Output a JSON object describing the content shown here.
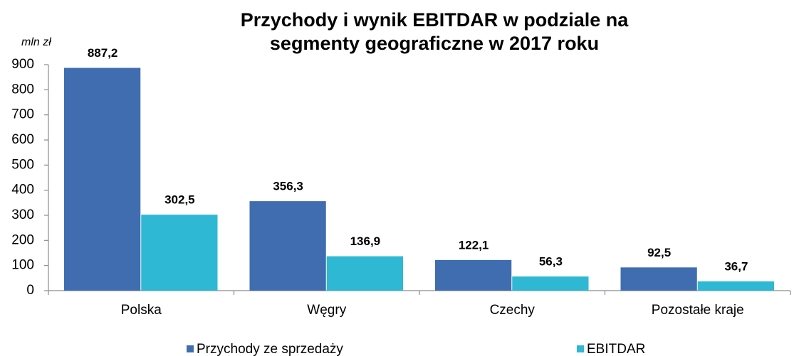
{
  "chart_data": {
    "type": "bar",
    "title": [
      "Przychody i wynik EBITDAR w podziale na",
      "segmenty geograficzne w 2017 roku"
    ],
    "y_axis_label": "mln zł",
    "categories": [
      "Polska",
      "Węgry",
      "Czechy",
      "Pozostałe kraje"
    ],
    "series": [
      {
        "name": "Przychody ze sprzedaży",
        "color": "#3f6db0",
        "values": [
          887.2,
          356.3,
          122.1,
          92.5
        ],
        "value_labels": [
          "887,2",
          "356,3",
          "122,1",
          "92,5"
        ]
      },
      {
        "name": "EBITDAR",
        "color": "#2fb8d4",
        "values": [
          302.5,
          136.9,
          56.3,
          36.7
        ],
        "value_labels": [
          "302,5",
          "136,9",
          "56,3",
          "36,7"
        ]
      }
    ],
    "ylim": [
      0,
      900
    ],
    "yticks": [
      0,
      100,
      200,
      300,
      400,
      500,
      600,
      700,
      800,
      900
    ],
    "grid": false,
    "legend": "bottom"
  }
}
